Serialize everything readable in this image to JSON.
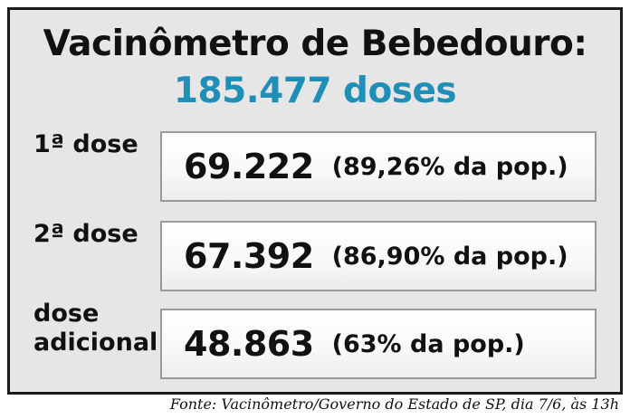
{
  "title": "Vacinômetro de Bebedouro:",
  "total": "185.477 doses",
  "rows": [
    {
      "label": "1ª dose",
      "value": "69.222",
      "percent": "(89,26% da pop.)"
    },
    {
      "label": "2ª dose",
      "value": "67.392",
      "percent": "(86,90% da pop.)"
    },
    {
      "label": "dose\nadicional",
      "value": "48.863",
      "percent": "(63% da pop.)"
    }
  ],
  "source": "Fonte: Vacinômetro/Governo do Estado de SP, dia 7/6, às 13h",
  "colors": {
    "accent": "#1f8fb8",
    "card_background": "#e6e6e6",
    "border": "#1a1a1a"
  }
}
